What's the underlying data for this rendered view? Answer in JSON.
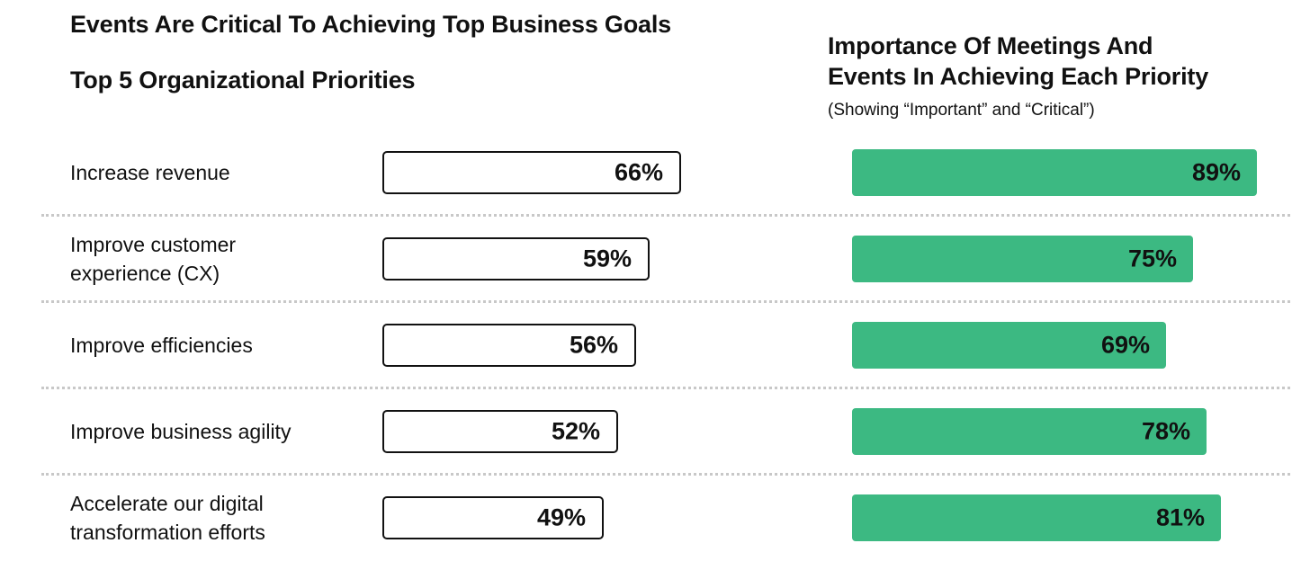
{
  "header": {
    "main_title": "Events Are Critical To Achieving Top Business Goals",
    "left_title": "Top 5 Organizational Priorities",
    "right_title_line1": "Importance Of Meetings And",
    "right_title_line2": "Events In Achieving Each Priority",
    "right_subtitle": "(Showing “Important” and “Critical”)"
  },
  "chart_data": [
    {
      "type": "bar",
      "orientation": "horizontal",
      "title": "Top 5 Organizational Priorities",
      "categories": [
        "Increase revenue",
        "Improve customer experience (CX)",
        "Improve efficiencies",
        "Improve business agility",
        "Accelerate our digital transformation efforts"
      ],
      "category_lines": [
        [
          "Increase revenue"
        ],
        [
          "Improve customer",
          "experience (CX)"
        ],
        [
          "Improve efficiencies"
        ],
        [
          "Improve business agility"
        ],
        [
          "Accelerate our digital",
          "transformation efforts"
        ]
      ],
      "values": [
        66,
        59,
        56,
        52,
        49
      ],
      "value_labels": [
        "66%",
        "59%",
        "56%",
        "52%",
        "49%"
      ],
      "bar_fill": "#ffffff",
      "bar_outline": "#111111"
    },
    {
      "type": "bar",
      "orientation": "horizontal",
      "title": "Importance Of Meetings And Events In Achieving Each Priority",
      "subtitle": "(Showing “Important” and “Critical”)",
      "categories": [
        "Increase revenue",
        "Improve customer experience (CX)",
        "Improve efficiencies",
        "Improve business agility",
        "Accelerate our digital transformation efforts"
      ],
      "values": [
        89,
        75,
        69,
        78,
        81
      ],
      "value_labels": [
        "89%",
        "75%",
        "69%",
        "78%",
        "81%"
      ],
      "bar_fill": "#3cb982"
    }
  ]
}
